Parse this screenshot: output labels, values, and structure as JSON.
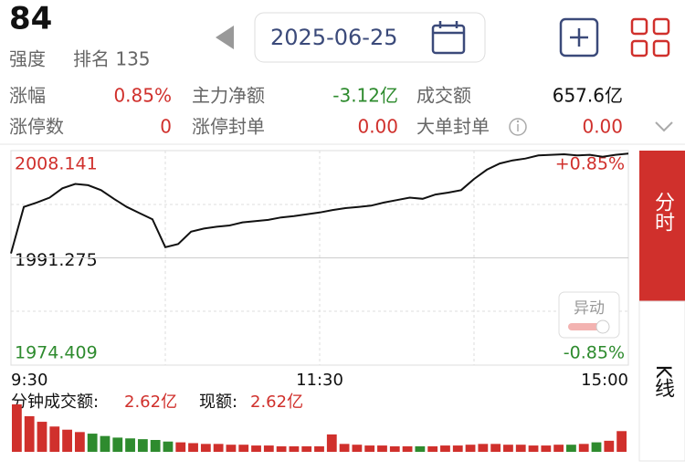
{
  "header": {
    "score": "84",
    "strength": "强度",
    "rank": "排名 135",
    "date": "2025-06-25"
  },
  "stats": [
    [
      {
        "label": "涨幅",
        "value": "0.85%"
      },
      {
        "label": "主力净额",
        "value": "-3.12亿"
      },
      {
        "label": "成交额",
        "value": "657.6亿"
      }
    ],
    [
      {
        "label": "涨停数",
        "value": "0"
      },
      {
        "label": "涨停封单",
        "value": "0.00"
      },
      {
        "label": "大单封单",
        "value": "0.00"
      }
    ]
  ],
  "tabs": [
    "分时",
    "K线"
  ],
  "badge": "异动",
  "chart_data": [
    {
      "type": "line",
      "color": "#111111",
      "categories": [
        "9:30",
        null,
        null,
        null,
        null,
        null,
        null,
        null,
        null,
        null,
        null,
        null,
        null,
        null,
        null,
        null,
        null,
        null,
        null,
        null,
        null,
        null,
        null,
        null,
        "11:30",
        null,
        null,
        null,
        null,
        null,
        null,
        null,
        null,
        null,
        null,
        null,
        null,
        null,
        null,
        null,
        null,
        null,
        null,
        null,
        null,
        null,
        null,
        null,
        "15:00"
      ],
      "values": [
        1992.0,
        1999.5,
        2000.2,
        2001.0,
        2002.5,
        2003.2,
        2003.0,
        2002.2,
        2000.8,
        1999.5,
        1998.5,
        1997.5,
        1993.0,
        1993.5,
        1995.5,
        1996.0,
        1996.3,
        1996.5,
        1997.0,
        1997.2,
        1997.4,
        1997.8,
        1998.0,
        1998.3,
        1998.6,
        1999.0,
        1999.3,
        1999.5,
        1999.7,
        2000.2,
        2000.6,
        2001.0,
        2000.8,
        2001.5,
        2001.8,
        2002.2,
        2004.0,
        2005.5,
        2006.5,
        2007.0,
        2007.3,
        2007.8,
        2007.9,
        2008.0,
        2007.8,
        2007.9,
        2007.6,
        2007.9,
        2008.1
      ],
      "ylim": [
        1974.409,
        2008.141
      ],
      "yticks": [
        2008.141,
        1991.275,
        1974.409
      ],
      "y2lim": [
        -0.85,
        0.85
      ],
      "y2ticks": [
        {
          "value": 0.85,
          "label": "+0.85%"
        },
        {
          "value": -0.85,
          "label": "-0.85%"
        }
      ]
    },
    {
      "type": "bar",
      "up_color": "#d0302c",
      "down_color": "#2e8b2e",
      "label": "分钟成交额:",
      "value_label": "2.62亿",
      "current_label": "现额:",
      "current_value": "2.62亿",
      "values": [
        6.0,
        4.5,
        3.8,
        3.2,
        2.8,
        2.5,
        2.3,
        2.0,
        1.8,
        1.7,
        1.6,
        1.5,
        1.3,
        1.2,
        1.1,
        1.0,
        1.0,
        0.9,
        0.9,
        0.8,
        0.8,
        0.7,
        0.7,
        0.7,
        0.7,
        2.2,
        1.0,
        0.9,
        0.8,
        0.8,
        0.7,
        0.7,
        0.7,
        0.7,
        0.8,
        0.8,
        0.9,
        1.0,
        1.0,
        0.9,
        0.9,
        0.8,
        0.8,
        0.9,
        0.9,
        1.0,
        1.2,
        1.4,
        2.62
      ]
    }
  ]
}
